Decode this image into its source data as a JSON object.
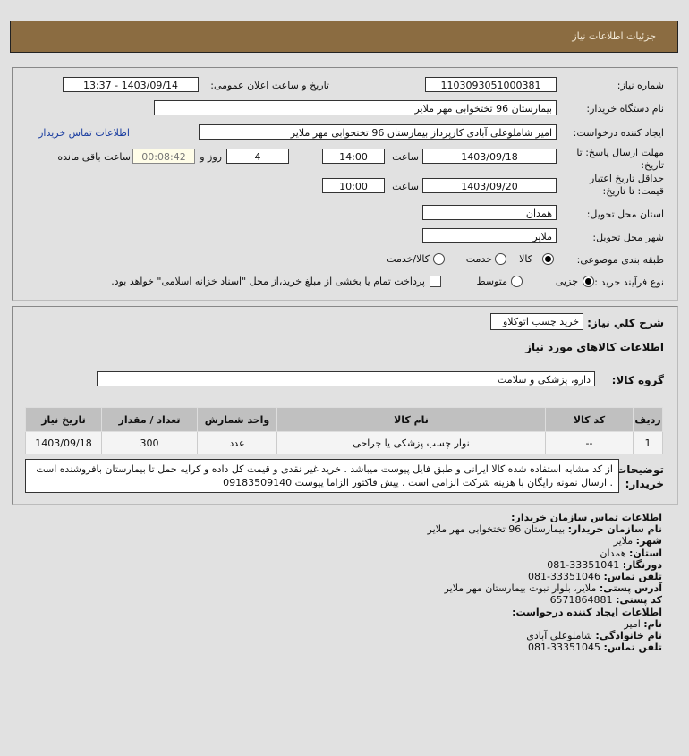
{
  "header": {
    "title": "جزئيات اطلاعات نياز"
  },
  "form": {
    "need_number_label": "شماره نیاز:",
    "need_number": "1103093051000381",
    "announce_label": "تاریخ و ساعت اعلان عمومی:",
    "announce_value": "1403/09/14 - 13:37",
    "buyer_org_label": "نام دستگاه خریدار:",
    "buyer_org": "بیمارستان 96 تختخوابی مهر ملایر",
    "creator_label": "ایجاد کننده درخواست:",
    "creator": "امیر شاملوعلی آبادی کارپرداز بیمارستان 96 تختخوابی مهر ملایر",
    "contact_link": "اطلاعات تماس خریدار",
    "deadline_label": "مهلت ارسال پاسخ: تا تاریخ:",
    "deadline_date": "1403/09/18",
    "time_label": "ساعت",
    "deadline_time": "14:00",
    "days": "4",
    "days_label": "روز و",
    "remaining": "00:08:42",
    "remaining_label": "ساعت باقی مانده",
    "validity_label": "حداقل تاریخ اعتبار قیمت: تا تاریخ:",
    "validity_date": "1403/09/20",
    "validity_time": "10:00",
    "province_label": "استان محل تحویل:",
    "province": "همدان",
    "city_label": "شهر محل تحویل:",
    "city": "ملایر",
    "category_label": "طبقه بندی موضوعی:",
    "category_options": [
      "کالا",
      "خدمت",
      "کالا/خدمت"
    ],
    "category_selected": "کالا",
    "process_label": "نوع فرآیند خرید :",
    "process_options": [
      "جزیی",
      "متوسط"
    ],
    "process_selected": "جزیی",
    "payment_note": "پرداخت تمام یا بخشی از مبلغ خرید،از محل \"اسناد خزانه اسلامی\" خواهد بود."
  },
  "summary": {
    "desc_label": "شرح کلي نياز:",
    "desc": "خرید چسب اتوکلاو",
    "goods_title": "اطلاعات كالاهاي مورد نياز",
    "group_label": "گروه کالا:",
    "group": "دارو، پزشکی و سلامت",
    "table": {
      "headers": [
        "ردیف",
        "کد کالا",
        "نام کالا",
        "واحد شمارش",
        "تعداد / مقدار",
        "تاریخ نیاز"
      ],
      "rows": [
        [
          "1",
          "--",
          "نوار چسب پزشکی یا جراحی",
          "عدد",
          "300",
          "1403/09/18"
        ]
      ]
    },
    "notes_label": "توضیحات خریدار:",
    "notes": "از کد مشابه استفاده شده کالا ایرانی و طبق فایل پیوست میباشد . خرید غیر نقدی و قیمت کل داده و کرایه حمل تا بیمارستان بافروشنده است . ارسال نمونه رایگان با هزینه شرکت الزامی است . پیش فاکتور الزاما پیوست 09183509140"
  },
  "contact": {
    "title": "اطلاعات تماس سازمان خریدار:",
    "org_label": "نام سازمان خریدار:",
    "org": "بیمارستان 96 تختخوابی مهر ملایر",
    "city_label": "شهر:",
    "city": "ملایر",
    "province_label": "استان:",
    "province": "همدان",
    "fax_label": "دورنگار:",
    "fax": "33351041-081",
    "phone_label": "تلفن تماس:",
    "phone": "33351046-081",
    "address_label": "آدرس پستی:",
    "address": "ملایر، بلوار نبوت بیمارستان مهر ملایر",
    "postal_label": "کد پستی:",
    "postal": "6571864881",
    "creator_title": "اطلاعات ایجاد کننده درخواست:",
    "name_label": "نام:",
    "name": "امیر",
    "family_label": "نام خانوادگی:",
    "family": "شاملوعلی آبادی",
    "creator_phone_label": "تلفن تماس:",
    "creator_phone": "33351045-081"
  }
}
